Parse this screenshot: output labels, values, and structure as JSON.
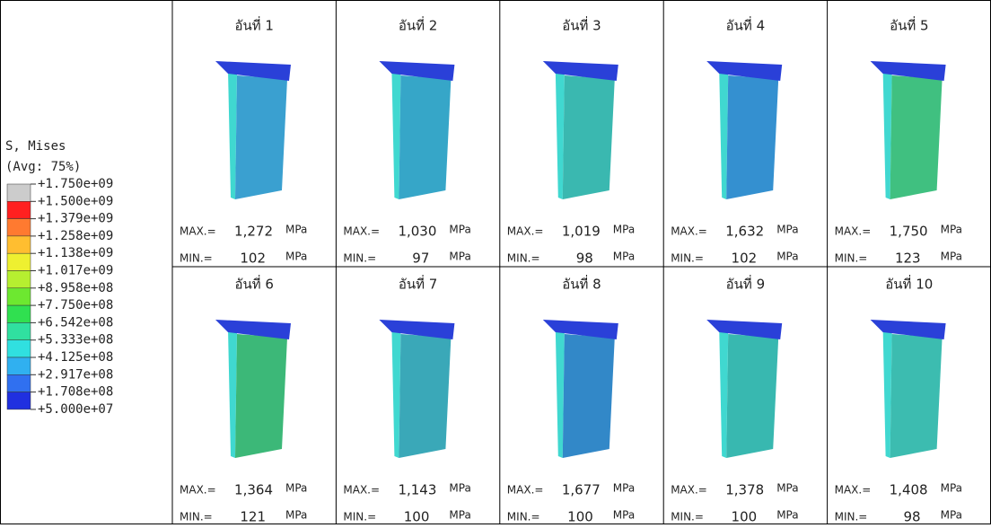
{
  "legend": {
    "title": "S, Mises",
    "subtitle": "(Avg: 75%)",
    "labels": [
      "+1.750e+09",
      "+1.500e+09",
      "+1.379e+09",
      "+1.258e+09",
      "+1.138e+09",
      "+1.017e+09",
      "+8.958e+08",
      "+7.750e+08",
      "+6.542e+08",
      "+5.333e+08",
      "+4.125e+08",
      "+2.917e+08",
      "+1.708e+08",
      "+5.000e+07"
    ],
    "colors": [
      "#cccccc",
      "#ff2020",
      "#ff7a30",
      "#ffbe30",
      "#eef030",
      "#b6ef30",
      "#6de830",
      "#30e050",
      "#30e0a0",
      "#30e0e0",
      "#30b0f0",
      "#3070f0",
      "#2030e0"
    ]
  },
  "max_label": "MAX.=",
  "min_label": "MIN.=",
  "unit": "MPa",
  "cells": [
    {
      "title": "อันที่ 1",
      "max": "1,272",
      "min": "102",
      "color": "#3aa0d0"
    },
    {
      "title": "อันที่ 2",
      "max": "1,030",
      "min": "97",
      "color": "#36a6c8"
    },
    {
      "title": "อันที่ 3",
      "max": "1,019",
      "min": "98",
      "color": "#3ab8b0"
    },
    {
      "title": "อันที่ 4",
      "max": "1,632",
      "min": "102",
      "color": "#3490d0"
    },
    {
      "title": "อันที่ 5",
      "max": "1,750",
      "min": "123",
      "color": "#40c080"
    },
    {
      "title": "อันที่ 6",
      "max": "1,364",
      "min": "121",
      "color": "#3cb878"
    },
    {
      "title": "อันที่ 7",
      "max": "1,143",
      "min": "100",
      "color": "#3aa8b8"
    },
    {
      "title": "อันที่ 8",
      "max": "1,677",
      "min": "100",
      "color": "#3288c8"
    },
    {
      "title": "อันที่ 9",
      "max": "1,378",
      "min": "100",
      "color": "#38b8b0"
    },
    {
      "title": "อันที่ 10",
      "max": "1,408",
      "min": "98",
      "color": "#3cbcb0"
    }
  ]
}
